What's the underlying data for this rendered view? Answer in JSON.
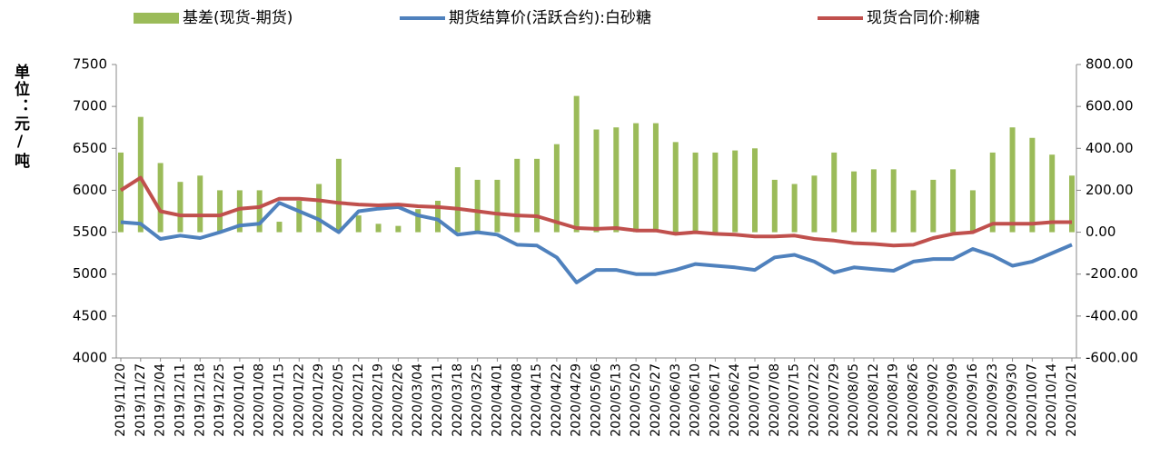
{
  "chart_data": {
    "type": "combo",
    "y_axis_label": "单位：元/吨",
    "legend": "top",
    "categories": [
      "2019/11/20",
      "2019/11/27",
      "2019/12/04",
      "2019/12/11",
      "2019/12/18",
      "2019/12/25",
      "2020/01/01",
      "2020/01/08",
      "2020/01/15",
      "2020/01/22",
      "2020/01/29",
      "2020/02/05",
      "2020/02/12",
      "2020/02/19",
      "2020/02/26",
      "2020/03/04",
      "2020/03/11",
      "2020/03/18",
      "2020/03/25",
      "2020/04/01",
      "2020/04/08",
      "2020/04/15",
      "2020/04/22",
      "2020/04/29",
      "2020/05/06",
      "2020/05/13",
      "2020/05/20",
      "2020/05/27",
      "2020/06/03",
      "2020/06/10",
      "2020/06/17",
      "2020/06/24",
      "2020/07/01",
      "2020/07/08",
      "2020/07/15",
      "2020/07/22",
      "2020/07/29",
      "2020/08/05",
      "2020/08/12",
      "2020/08/19",
      "2020/08/26",
      "2020/09/02",
      "2020/09/09",
      "2020/09/16",
      "2020/09/23",
      "2020/09/30",
      "2020/10/07",
      "2020/10/14",
      "2020/10/21"
    ],
    "series": [
      {
        "name": "基差(现货-期货)",
        "type": "bar",
        "axis": "y2",
        "color": "#9bbb59",
        "values": [
          380,
          550,
          330,
          240,
          270,
          200,
          200,
          200,
          50,
          150,
          230,
          350,
          80,
          40,
          30,
          110,
          150,
          310,
          250,
          250,
          350,
          350,
          420,
          650,
          490,
          500,
          520,
          520,
          430,
          380,
          380,
          390,
          400,
          250,
          230,
          270,
          380,
          290,
          300,
          300,
          200,
          250,
          300,
          200,
          380,
          500,
          450,
          370,
          270
        ]
      },
      {
        "name": "期货结算价(活跃合约):白砂糖",
        "type": "line",
        "color": "#4f81bd",
        "values": [
          5620,
          5600,
          5420,
          5460,
          5430,
          5500,
          5580,
          5600,
          5850,
          5750,
          5650,
          5500,
          5750,
          5780,
          5800,
          5700,
          5650,
          5470,
          5500,
          5470,
          5350,
          5340,
          5200,
          4900,
          5050,
          5050,
          5000,
          5000,
          5050,
          5120,
          5100,
          5080,
          5050,
          5200,
          5230,
          5150,
          5020,
          5080,
          5060,
          5040,
          5150,
          5180,
          5180,
          5300,
          5220,
          5100,
          5150,
          5250,
          5350
        ]
      },
      {
        "name": "现货合同价:柳糖",
        "type": "line",
        "color": "#c0504d",
        "values": [
          6000,
          6150,
          5750,
          5700,
          5700,
          5700,
          5780,
          5800,
          5900,
          5900,
          5880,
          5850,
          5830,
          5820,
          5830,
          5810,
          5800,
          5780,
          5750,
          5720,
          5700,
          5690,
          5620,
          5550,
          5540,
          5550,
          5520,
          5520,
          5480,
          5500,
          5480,
          5470,
          5450,
          5450,
          5460,
          5420,
          5400,
          5370,
          5360,
          5340,
          5350,
          5430,
          5480,
          5500,
          5600,
          5600,
          5600,
          5620,
          5620
        ]
      }
    ],
    "ylim": [
      4000,
      7500
    ],
    "yticks": [
      4000,
      4500,
      5000,
      5500,
      6000,
      6500,
      7000,
      7500
    ],
    "y2lim": [
      -600,
      800
    ],
    "y2ticks": [
      {
        "value": -600,
        "label": "-600.00"
      },
      {
        "value": -400,
        "label": "-400.00"
      },
      {
        "value": -200,
        "label": "-200.00"
      },
      {
        "value": 0,
        "label": "0.00"
      },
      {
        "value": 200,
        "label": "200.00"
      },
      {
        "value": 400,
        "label": "400.00"
      },
      {
        "value": 600,
        "label": "600.00"
      },
      {
        "value": 800,
        "label": "800.00"
      }
    ]
  }
}
